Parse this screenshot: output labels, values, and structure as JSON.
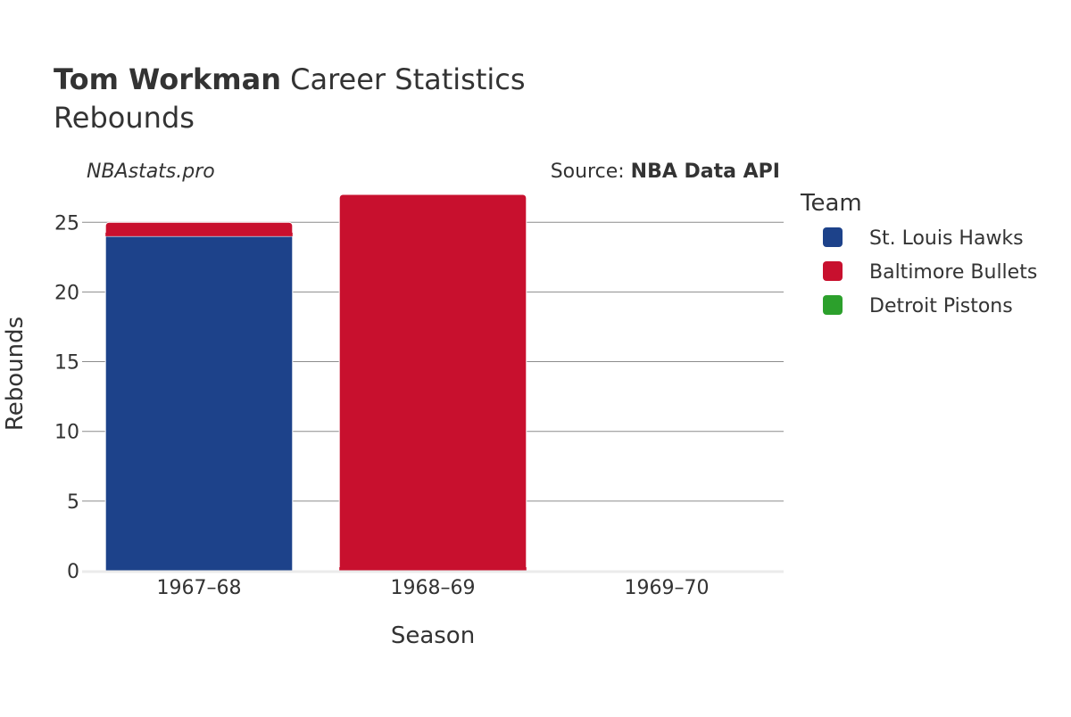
{
  "header": {
    "title_name": "Tom Workman",
    "title_rest": " Career Statistics",
    "subtitle": "Rebounds"
  },
  "annotations": {
    "watermark": "NBAstats.pro",
    "source_prefix": "Source: ",
    "source_name": "NBA Data API"
  },
  "legend": {
    "title": "Team",
    "position": "right"
  },
  "chart_data": {
    "type": "bar",
    "barmode": "stack",
    "title": "Tom Workman Career Statistics",
    "subtitle": "Rebounds",
    "xlabel": "Season",
    "ylabel": "Rebounds",
    "categories": [
      "1967–68",
      "1968–69",
      "1969–70"
    ],
    "ylim": [
      0,
      27
    ],
    "yticks": [
      0,
      5,
      10,
      15,
      20,
      25
    ],
    "grid": true,
    "series": [
      {
        "name": "St. Louis Hawks",
        "color": "#1d428a",
        "values": [
          24,
          0,
          0
        ]
      },
      {
        "name": "Baltimore Bullets",
        "color": "#c8102e",
        "values": [
          1,
          27,
          0
        ]
      },
      {
        "name": "Detroit Pistons",
        "color": "#2ca02c",
        "values": [
          0,
          0,
          0
        ]
      }
    ]
  }
}
